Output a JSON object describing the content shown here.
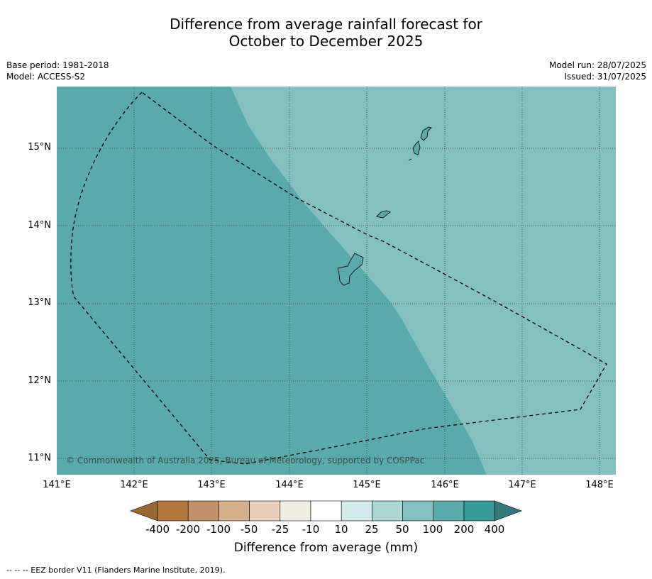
{
  "header": {
    "title_line1": "Difference from average rainfall forecast for",
    "title_line2": "October to December 2025",
    "base_period": "Base period: 1981-2018",
    "model": "Model: ACCESS-S2",
    "model_run": "Model run: 28/07/2025",
    "issued": "Issued: 31/07/2025"
  },
  "map": {
    "lon_range": [
      141.0,
      148.2
    ],
    "lat_range": [
      10.8,
      15.8
    ],
    "lat_ticks": [
      "15°N",
      "14°N",
      "13°N",
      "12°N",
      "11°N"
    ],
    "lon_ticks": [
      "141°E",
      "142°E",
      "143°E",
      "144°E",
      "145°E",
      "146°E",
      "147°E",
      "148°E"
    ],
    "regions": [
      {
        "category": "200 to 400 mm above average",
        "color": "#5aaaaa"
      },
      {
        "category": "100 to 200 mm above average",
        "color": "#84c0bf"
      }
    ],
    "eez_border_color": "#000000",
    "copyright": "© Commonwealth of Australia 2025, Bureau of Meteorology, supported by COSPPac"
  },
  "colorbar": {
    "colors": [
      "#9a6636",
      "#b0783c",
      "#c0916a",
      "#d4b08f",
      "#e8d0bd",
      "#f0ece8",
      "#ffffff",
      "#d4ebe9",
      "#acd7d4",
      "#84c0bf",
      "#5aaaaa",
      "#379a98",
      "#357878"
    ],
    "labels": [
      "-400",
      "-200",
      "-100",
      "-50",
      "-25",
      "-10",
      "10",
      "25",
      "50",
      "100",
      "200",
      "400"
    ],
    "title": "Difference from average (mm)"
  },
  "legend_note": "--  --  -- EEZ border V11 (Flanders Marine Institute, 2019)."
}
